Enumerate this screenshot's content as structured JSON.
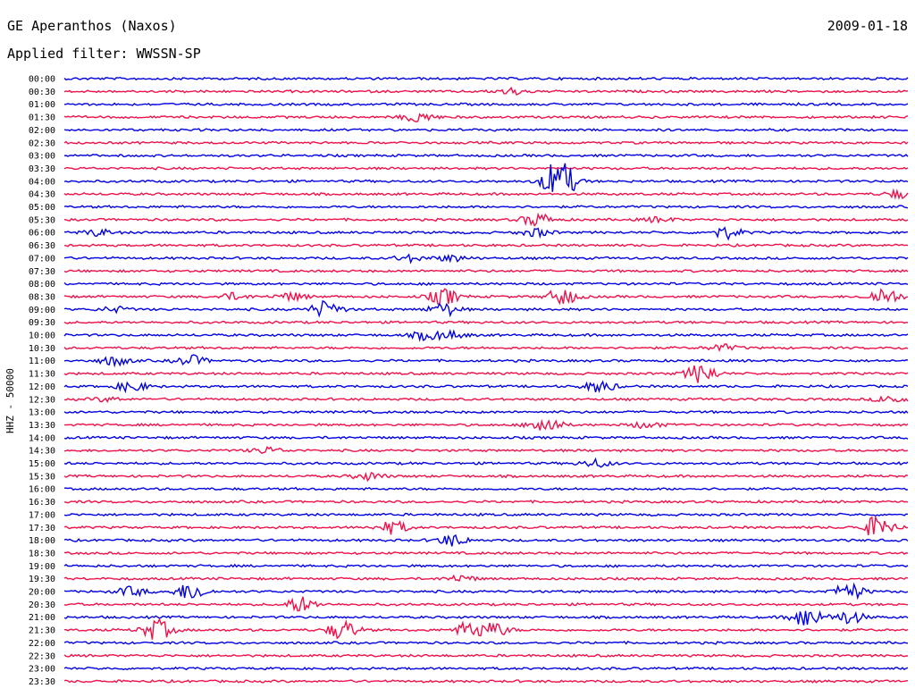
{
  "header": {
    "station": "GE Aperanthos (Naxos)",
    "date": "2009-01-18",
    "filter": "Applied filter: WWSSN-SP"
  },
  "chart_data": {
    "type": "line",
    "ylabel": "HHZ - 50000",
    "colors": {
      "even_row": "#0000e6",
      "odd_row": "#f0104a"
    },
    "hours": [
      "00:00",
      "00:30",
      "01:00",
      "01:30",
      "02:00",
      "02:30",
      "03:00",
      "03:30",
      "04:00",
      "04:30",
      "05:00",
      "05:30",
      "06:00",
      "06:30",
      "07:00",
      "07:30",
      "08:00",
      "08:30",
      "09:00",
      "09:30",
      "10:00",
      "10:30",
      "11:00",
      "11:30",
      "12:00",
      "12:30",
      "13:00",
      "13:30",
      "14:00",
      "14:30",
      "15:00",
      "15:30",
      "16:00",
      "16:30",
      "17:00",
      "17:30",
      "18:00",
      "18:30",
      "19:00",
      "19:30",
      "20:00",
      "20:30",
      "21:00",
      "21:30",
      "22:00",
      "22:30",
      "23:00",
      "23:30"
    ],
    "events": [
      {
        "row": 1,
        "pos": 0.53,
        "amp": 0.5
      },
      {
        "row": 3,
        "pos": 0.42,
        "amp": 0.8
      },
      {
        "row": 8,
        "pos": 0.585,
        "amp": 2.5
      },
      {
        "row": 8,
        "pos": 0.59,
        "amp": 1.2
      },
      {
        "row": 9,
        "pos": 0.99,
        "amp": 0.6
      },
      {
        "row": 11,
        "pos": 0.56,
        "amp": 1.0
      },
      {
        "row": 11,
        "pos": 0.705,
        "amp": 0.4
      },
      {
        "row": 12,
        "pos": 0.04,
        "amp": 0.5
      },
      {
        "row": 12,
        "pos": 0.56,
        "amp": 0.6
      },
      {
        "row": 12,
        "pos": 0.785,
        "amp": 0.9
      },
      {
        "row": 14,
        "pos": 0.41,
        "amp": 0.5
      },
      {
        "row": 14,
        "pos": 0.46,
        "amp": 0.5
      },
      {
        "row": 17,
        "pos": 0.2,
        "amp": 0.5
      },
      {
        "row": 17,
        "pos": 0.27,
        "amp": 0.6
      },
      {
        "row": 17,
        "pos": 0.45,
        "amp": 1.3
      },
      {
        "row": 17,
        "pos": 0.59,
        "amp": 1.3
      },
      {
        "row": 17,
        "pos": 0.972,
        "amp": 1.4
      },
      {
        "row": 18,
        "pos": 0.06,
        "amp": 0.4
      },
      {
        "row": 18,
        "pos": 0.31,
        "amp": 1.3
      },
      {
        "row": 18,
        "pos": 0.45,
        "amp": 1.0
      },
      {
        "row": 20,
        "pos": 0.43,
        "amp": 0.7
      },
      {
        "row": 20,
        "pos": 0.46,
        "amp": 0.5
      },
      {
        "row": 21,
        "pos": 0.78,
        "amp": 0.5
      },
      {
        "row": 22,
        "pos": 0.06,
        "amp": 0.7
      },
      {
        "row": 22,
        "pos": 0.15,
        "amp": 0.8
      },
      {
        "row": 23,
        "pos": 0.755,
        "amp": 1.6
      },
      {
        "row": 24,
        "pos": 0.08,
        "amp": 0.8
      },
      {
        "row": 24,
        "pos": 0.635,
        "amp": 0.9
      },
      {
        "row": 25,
        "pos": 0.05,
        "amp": 0.3
      },
      {
        "row": 25,
        "pos": 0.98,
        "amp": 0.6
      },
      {
        "row": 27,
        "pos": 0.57,
        "amp": 1.4
      },
      {
        "row": 27,
        "pos": 0.69,
        "amp": 0.5
      },
      {
        "row": 29,
        "pos": 0.24,
        "amp": 0.5
      },
      {
        "row": 30,
        "pos": 0.63,
        "amp": 0.6
      },
      {
        "row": 31,
        "pos": 0.36,
        "amp": 0.6
      },
      {
        "row": 35,
        "pos": 0.39,
        "amp": 1.0
      },
      {
        "row": 35,
        "pos": 0.965,
        "amp": 1.8
      },
      {
        "row": 36,
        "pos": 0.46,
        "amp": 0.9
      },
      {
        "row": 39,
        "pos": 0.47,
        "amp": 0.5
      },
      {
        "row": 40,
        "pos": 0.08,
        "amp": 0.7
      },
      {
        "row": 40,
        "pos": 0.15,
        "amp": 1.4
      },
      {
        "row": 40,
        "pos": 0.93,
        "amp": 1.3
      },
      {
        "row": 41,
        "pos": 0.28,
        "amp": 1.2
      },
      {
        "row": 42,
        "pos": 0.93,
        "amp": 1.0
      },
      {
        "row": 42,
        "pos": 0.88,
        "amp": 1.6
      },
      {
        "row": 43,
        "pos": 0.11,
        "amp": 1.6
      },
      {
        "row": 43,
        "pos": 0.33,
        "amp": 1.5
      },
      {
        "row": 43,
        "pos": 0.48,
        "amp": 1.2
      },
      {
        "row": 43,
        "pos": 0.51,
        "amp": 1.0
      }
    ]
  }
}
